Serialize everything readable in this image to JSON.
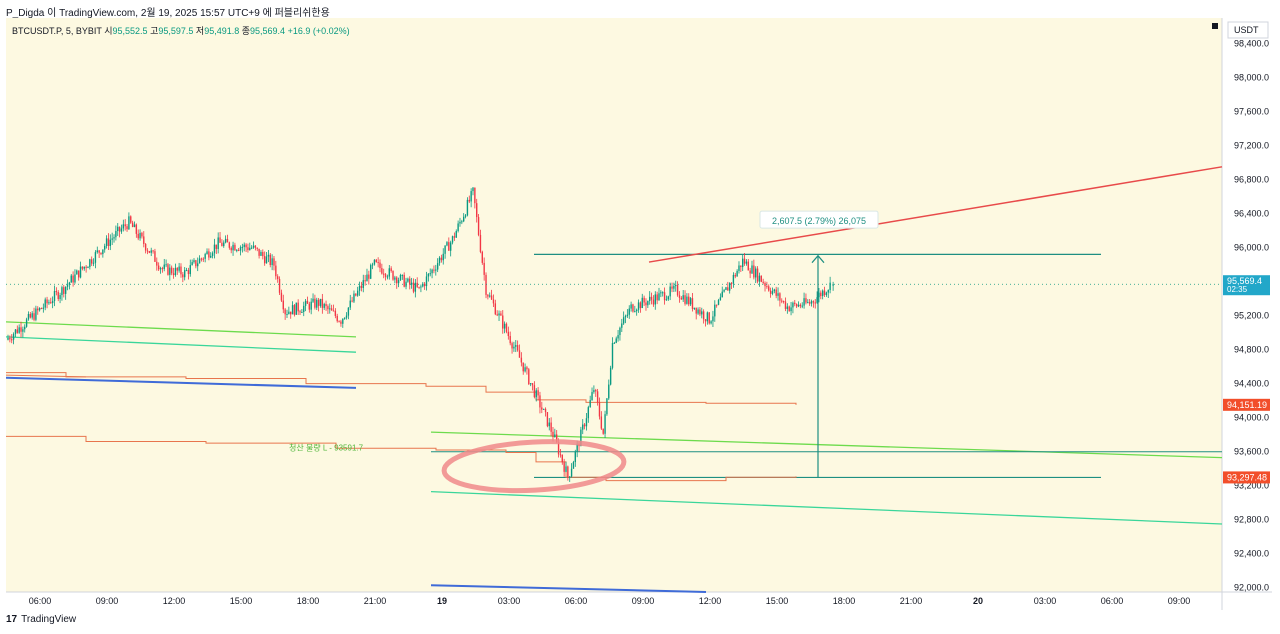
{
  "header": {
    "attribution": "P_Digda 이 TradingView.com, 2월 19, 2025 15:57 UTC+9 에 퍼블리쉬한용"
  },
  "legend": {
    "symbol": "BTCUSDT.P, 5, BYBIT",
    "open_label": "시",
    "open": "95,552.5",
    "high_label": "고",
    "high": "95,597.5",
    "low_label": "저",
    "low": "95,491.8",
    "close_label": "종",
    "close": "95,569.4",
    "change": "+16.9 (+0.02%)"
  },
  "price_axis": {
    "currency": "USDT",
    "ticks": [
      "98,400.0",
      "98,000.0",
      "97,600.0",
      "97,200.0",
      "96,800.0",
      "96,400.0",
      "96,000.0",
      "95,600.0",
      "95,200.0",
      "94,800.0",
      "94,400.0",
      "94,000.0",
      "93,600.0",
      "93,200.0",
      "92,800.0",
      "92,400.0",
      "92,000.0"
    ],
    "current_price": "95,569.4",
    "countdown": "02:35",
    "level_red_1": "94,151.19",
    "level_red_2": "93,297.48"
  },
  "time_axis": {
    "ticks": [
      "06:00",
      "09:00",
      "12:00",
      "15:00",
      "18:00",
      "21:00",
      "19",
      "03:00",
      "06:00",
      "09:00",
      "12:00",
      "15:00",
      "18:00",
      "21:00",
      "20",
      "03:00",
      "06:00",
      "09:00"
    ]
  },
  "annotations": {
    "measure_label": "2,607.5 (2.79%) 26,075",
    "liquidation_label": "청산 물량 L  - 93591.7"
  },
  "colors": {
    "background": "#fdf9e1",
    "up": "#089981",
    "down": "#f23645",
    "trend_red": "#e84a4a",
    "green_line": "#6ddb4d",
    "teal_line": "#3ad69a",
    "blue_line": "#3f6bd8",
    "orange_line": "#e8754d",
    "measure_teal": "#1e8f82",
    "ellipse": "#f08a8a",
    "price_badge": "#22a7c9",
    "red_badge": "#f24e2a"
  },
  "chart_data": {
    "type": "candlestick",
    "symbol": "BTCUSDT.P",
    "interval": "5",
    "exchange": "BYBIT",
    "ylim": [
      91950,
      98700
    ],
    "x_ticks": [
      "06:00",
      "09:00",
      "12:00",
      "15:00",
      "18:00",
      "21:00",
      "19",
      "03:00",
      "06:00",
      "09:00",
      "12:00",
      "15:00",
      "18:00",
      "21:00",
      "20",
      "03:00",
      "06:00",
      "09:00"
    ],
    "close_path_keypoints": [
      [
        "02-18 04:00",
        95150
      ],
      [
        "02-18 05:30",
        95500
      ],
      [
        "02-18 07:30",
        96050
      ],
      [
        "02-18 08:30",
        96300
      ],
      [
        "02-18 10:00",
        95750
      ],
      [
        "02-18 11:00",
        95700
      ],
      [
        "02-18 12:30",
        96050
      ],
      [
        "02-18 14:00",
        96000
      ],
      [
        "02-18 15:00",
        95800
      ],
      [
        "02-18 15:30",
        95250
      ],
      [
        "02-18 17:00",
        95350
      ],
      [
        "02-18 18:00",
        95150
      ],
      [
        "02-18 19:30",
        95800
      ],
      [
        "02-18 21:30",
        95500
      ],
      [
        "02-18 23:00",
        96100
      ],
      [
        "02-18 23:55",
        96650
      ],
      [
        "02-19 00:30",
        95500
      ],
      [
        "02-19 02:00",
        94700
      ],
      [
        "02-19 03:30",
        93800
      ],
      [
        "02-19 04:10",
        93300
      ],
      [
        "02-19 04:45",
        93800
      ],
      [
        "02-19 05:20",
        94350
      ],
      [
        "02-19 05:45",
        93800
      ],
      [
        "02-19 06:10",
        94900
      ],
      [
        "02-19 07:00",
        95300
      ],
      [
        "02-19 09:00",
        95500
      ],
      [
        "02-19 10:30",
        95150
      ],
      [
        "02-19 12:00",
        95850
      ],
      [
        "02-19 14:00",
        95300
      ],
      [
        "02-19 15:00",
        95350
      ],
      [
        "02-19 15:57",
        95569.4
      ]
    ],
    "last_candle": {
      "open": 95552.5,
      "high": 95597.5,
      "low": 95491.8,
      "close": 95569.4,
      "change": 16.9,
      "change_pct": 0.02
    },
    "levels": {
      "resistance": 95920,
      "support": 93297.48,
      "liquidation_long": 93591.7,
      "orange_upper_end": 94151.19
    },
    "measure": {
      "from": 93297.48,
      "to": 95905,
      "delta": 2607.5,
      "pct": 2.79,
      "bars": 26075
    }
  }
}
